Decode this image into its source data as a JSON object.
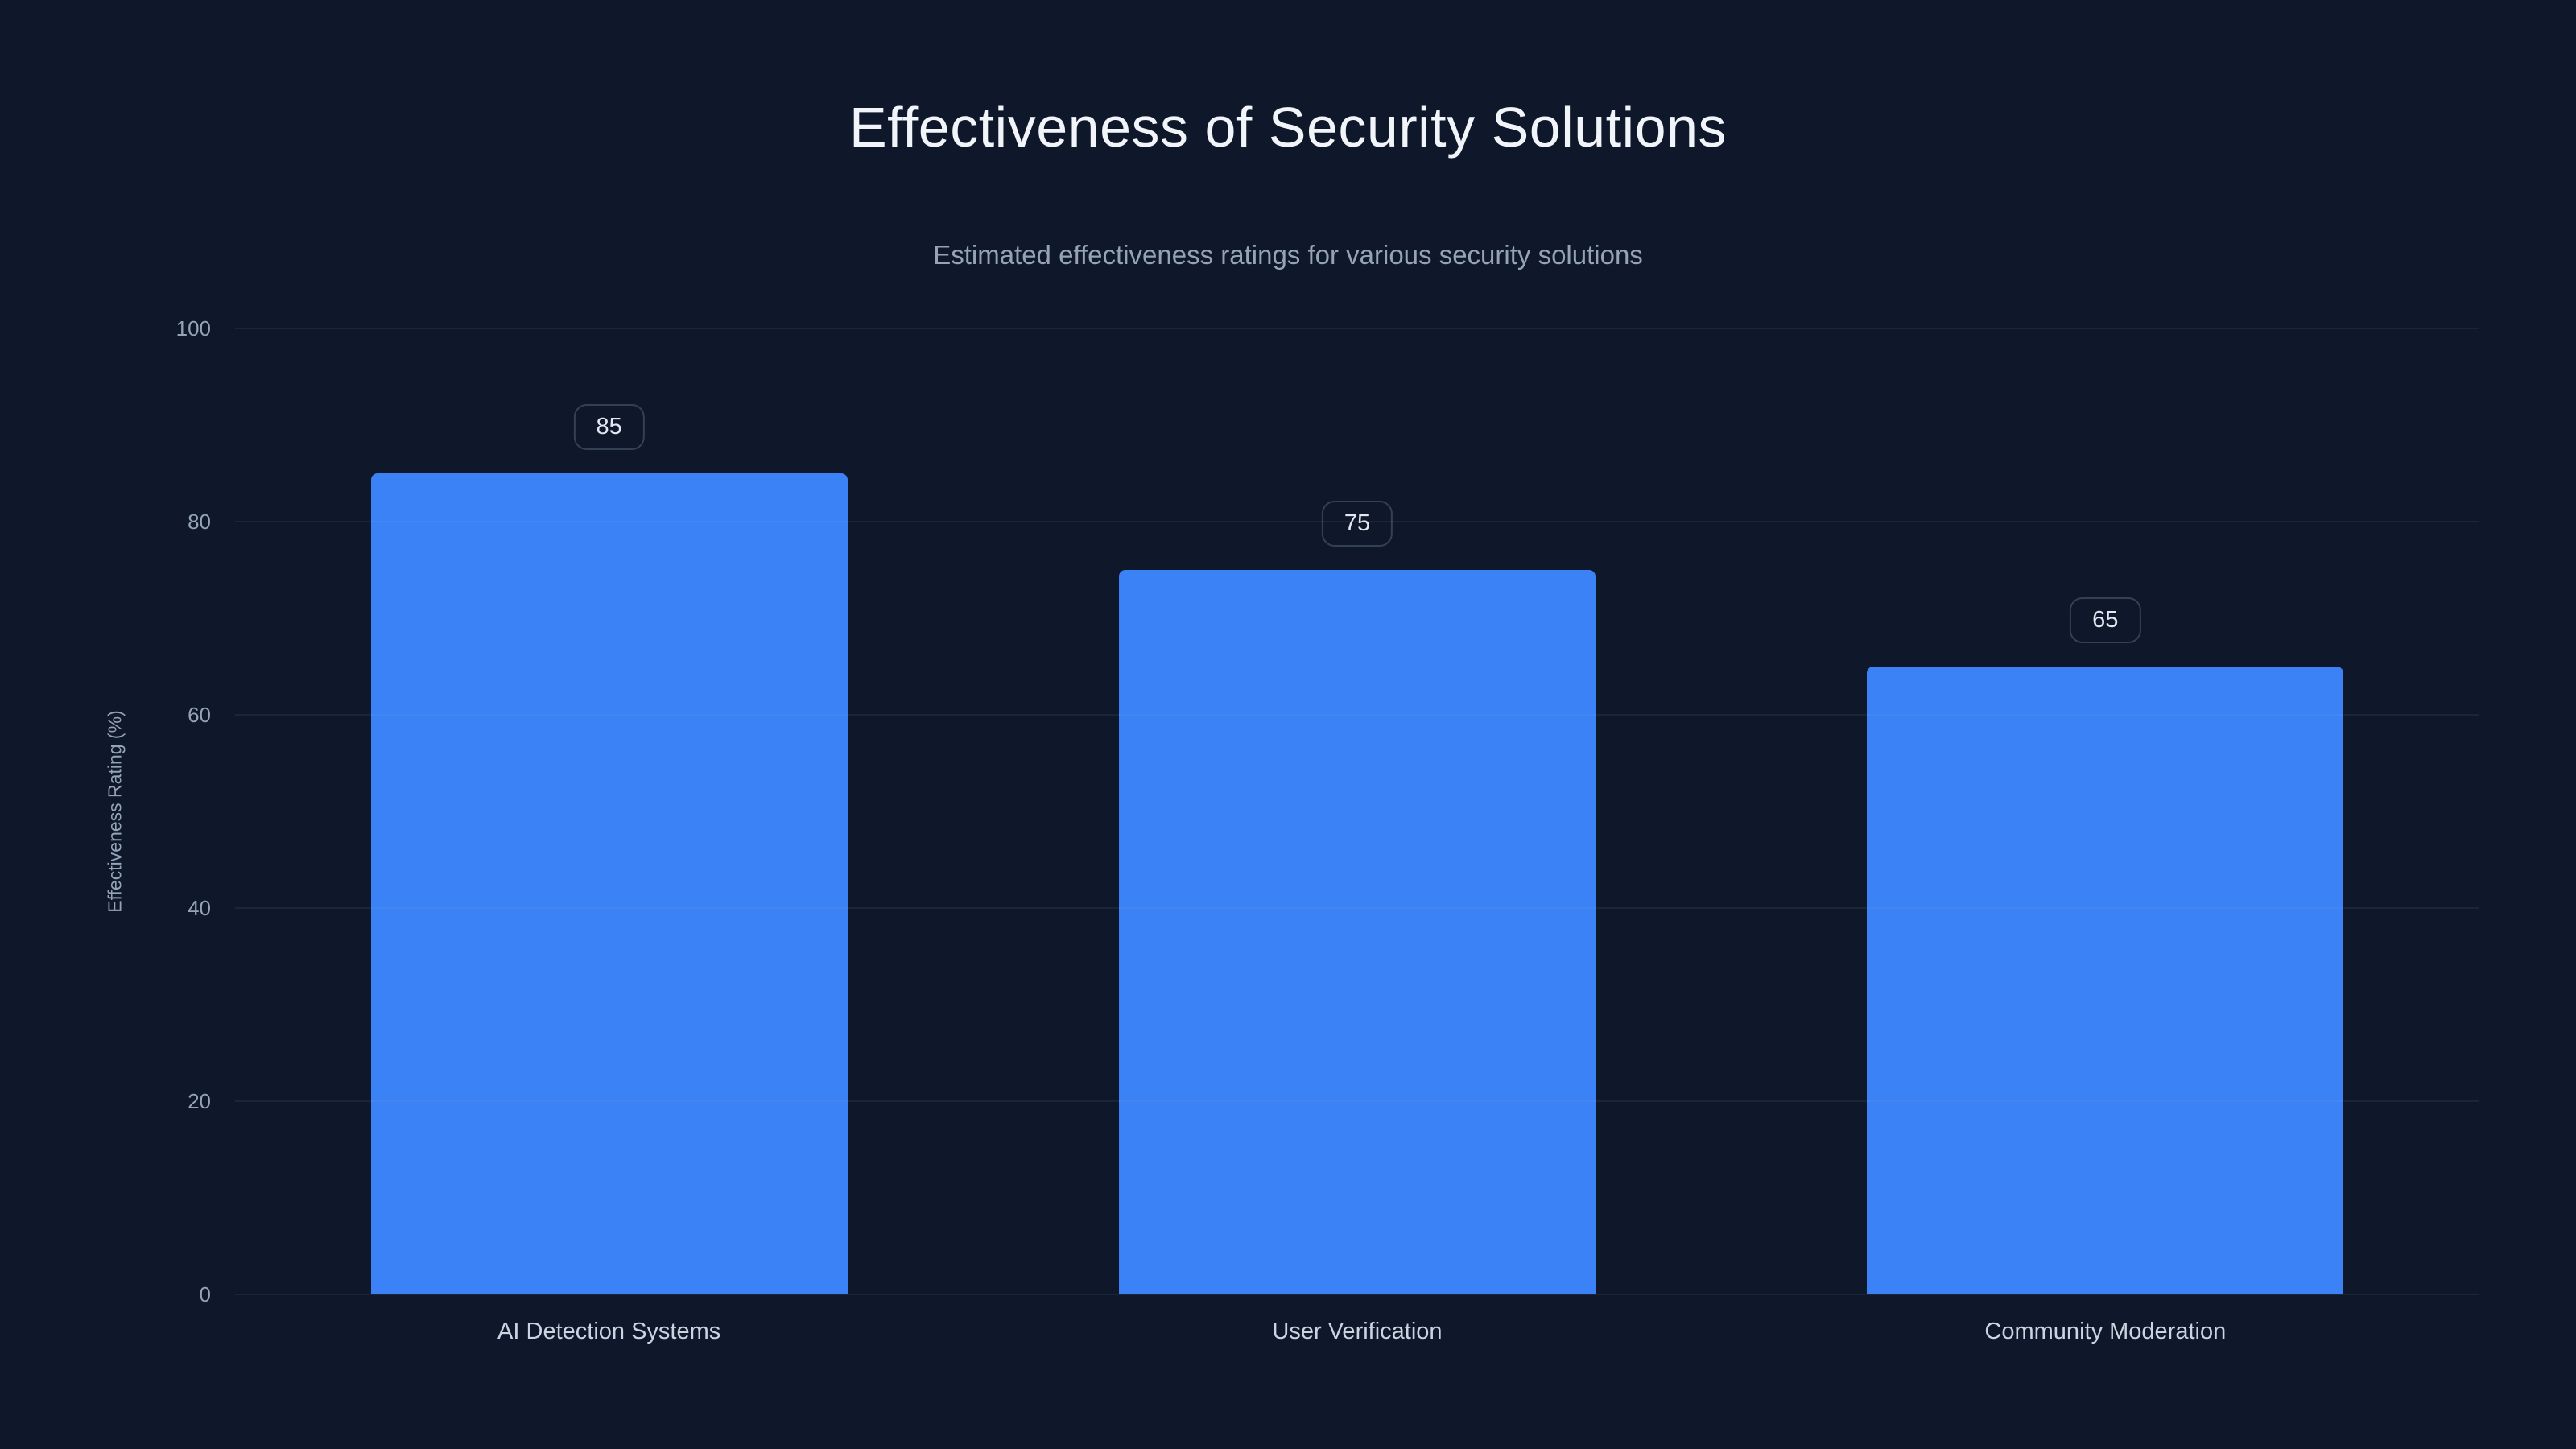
{
  "page": {
    "title": "Effectiveness of Security Solutions",
    "subtitle": "Estimated effectiveness ratings for various security solutions"
  },
  "chart_data": {
    "type": "bar",
    "title": "Effectiveness of Security Solutions",
    "subtitle": "Estimated effectiveness ratings for various security solutions",
    "categories": [
      "AI Detection Systems",
      "User Verification",
      "Community Moderation"
    ],
    "values": [
      85,
      75,
      65
    ],
    "value_labels": [
      "85",
      "75",
      "65"
    ],
    "xlabel": "",
    "ylabel": "Effectiveness Rating (%)",
    "ylim": [
      0,
      100
    ],
    "yticks": [
      0,
      20,
      40,
      60,
      80,
      100
    ],
    "grid": true,
    "legend": false,
    "bar_color": "#3b82f6",
    "background_color": "#0f172a",
    "gridline_color": "rgba(148,163,184,0.10)",
    "tick_color": "#94a3b8",
    "label_color": "#cbd5e1"
  }
}
